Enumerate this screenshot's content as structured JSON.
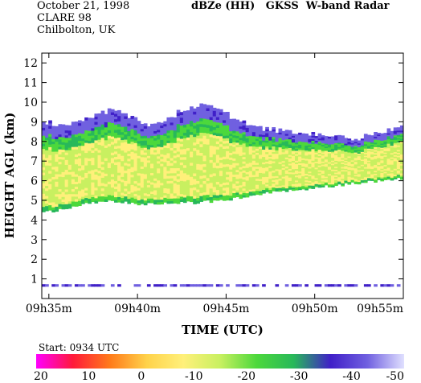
{
  "header": {
    "date": "October 21, 1998",
    "campaign": "CLARE 98",
    "location": "Chilbolton, UK",
    "product": "dBZe (HH)   GKSS  W-band Radar"
  },
  "start_label": "Start: 0934 UTC",
  "chart_data": {
    "type": "heatmap",
    "title": "dBZe (HH)   GKSS  W-band Radar",
    "xlabel": "TIME (UTC)",
    "ylabel": "HEIGHT AGL (km)",
    "x_ticks": [
      "09h35m",
      "09h40m",
      "09h45m",
      "09h50m",
      "09h55m"
    ],
    "x_tick_minutes": [
      35,
      40,
      45,
      50,
      55
    ],
    "xlim_minutes": [
      34.6,
      55
    ],
    "y_ticks": [
      "1",
      "2",
      "3",
      "4",
      "5",
      "6",
      "7",
      "8",
      "9",
      "10",
      "11",
      "12"
    ],
    "ylim": [
      0,
      12.5
    ],
    "colorbar": {
      "labels": [
        "20",
        "10",
        "0",
        "-10",
        "-20",
        "-30",
        "-40",
        "-50"
      ],
      "range": [
        20,
        -50
      ],
      "colors": [
        "#ff00ff",
        "#ff1a3a",
        "#ff7a1a",
        "#ffd24a",
        "#fff07a",
        "#c8f060",
        "#4cd83c",
        "#28b85a",
        "#4020c8",
        "#7060e0",
        "#e0e0ff"
      ]
    },
    "cloud_layer": {
      "top_km": [
        [
          34.6,
          9.0
        ],
        [
          35.5,
          8.9
        ],
        [
          36.5,
          8.9
        ],
        [
          37.5,
          9.3
        ],
        [
          38.5,
          9.6
        ],
        [
          39.5,
          9.3
        ],
        [
          40.5,
          8.9
        ],
        [
          41.5,
          9.0
        ],
        [
          42.5,
          9.6
        ],
        [
          43.5,
          9.9
        ],
        [
          44.5,
          9.6
        ],
        [
          45.5,
          9.2
        ],
        [
          46.5,
          8.8
        ],
        [
          47.5,
          8.6
        ],
        [
          48.5,
          8.5
        ],
        [
          49.5,
          8.3
        ],
        [
          50.5,
          8.4
        ],
        [
          51.5,
          8.2
        ],
        [
          52.5,
          8.2
        ],
        [
          53.5,
          8.4
        ],
        [
          54.5,
          8.6
        ],
        [
          55.0,
          8.7
        ]
      ],
      "base_km": [
        [
          34.6,
          4.4
        ],
        [
          35.5,
          4.5
        ],
        [
          36.5,
          4.7
        ],
        [
          37.5,
          4.9
        ],
        [
          38.5,
          5.0
        ],
        [
          39.5,
          4.9
        ],
        [
          40.5,
          4.8
        ],
        [
          41.5,
          4.9
        ],
        [
          42.5,
          4.9
        ],
        [
          43.5,
          4.9
        ],
        [
          44.5,
          5.0
        ],
        [
          45.5,
          5.1
        ],
        [
          46.5,
          5.3
        ],
        [
          47.5,
          5.4
        ],
        [
          48.5,
          5.5
        ],
        [
          49.5,
          5.6
        ],
        [
          50.5,
          5.7
        ],
        [
          51.5,
          5.8
        ],
        [
          52.5,
          5.9
        ],
        [
          53.5,
          6.0
        ],
        [
          54.5,
          6.1
        ],
        [
          55.0,
          6.1
        ]
      ],
      "core_dbz": -12,
      "edge_dbz": -25,
      "top_dbz": -42
    },
    "ground_clutter_km": 0.65,
    "grid": false,
    "legend": "bottom colorbar"
  }
}
